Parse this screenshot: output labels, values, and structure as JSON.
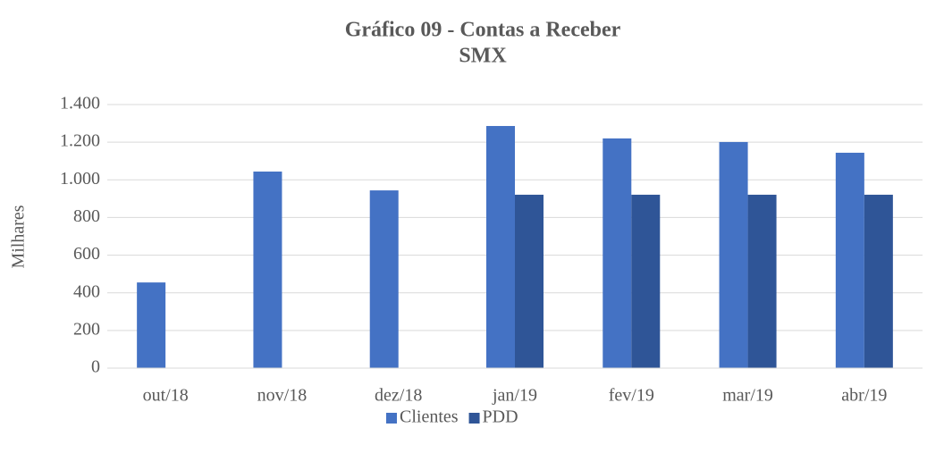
{
  "chart_data": {
    "type": "bar",
    "title": "Gráfico 09 - Contas a Receber",
    "subtitle": "SMX",
    "y_label": "Milhares",
    "categories": [
      "out/18",
      "nov/18",
      "dez/18",
      "jan/19",
      "fev/19",
      "mar/19",
      "abr/19"
    ],
    "series": [
      {
        "name": "Clientes",
        "color": "#4472c4",
        "values": [
          455,
          1044,
          944,
          1286,
          1220,
          1201,
          1144
        ]
      },
      {
        "name": "PDD",
        "color": "#2f5597",
        "values": [
          null,
          null,
          null,
          921,
          921,
          921,
          921
        ]
      }
    ],
    "ylim": [
      0,
      1400
    ],
    "yticks": [
      0,
      200,
      400,
      600,
      800,
      {
        "value": 1000,
        "label": "1.000"
      },
      {
        "value": 1200,
        "label": "1.200"
      },
      {
        "value": 1400,
        "label": "1.400"
      }
    ],
    "grid": true,
    "legend": "bottom"
  }
}
